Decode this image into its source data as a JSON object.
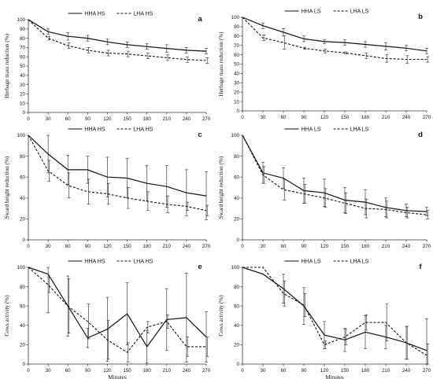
{
  "chart_data": [
    {
      "panel": "a",
      "type": "line",
      "x": [
        0,
        30,
        60,
        90,
        120,
        150,
        180,
        210,
        240,
        270
      ],
      "xticks": [
        "0",
        "30",
        "60",
        "90",
        "120",
        "150",
        "180",
        "210",
        "240",
        "270"
      ],
      "ylim": [
        0,
        100
      ],
      "yticks": [
        "0",
        "10",
        "20",
        "30",
        "40",
        "50",
        "60",
        "70",
        "80",
        "90",
        "100"
      ],
      "ylabel": "Herbage mass reduction (%)",
      "xlabel": "",
      "legend_position": "top-center",
      "series": [
        {
          "name": "HHA HS",
          "style": "solid",
          "values": [
            100,
            87,
            82,
            80,
            76,
            73,
            71,
            69,
            67,
            66
          ],
          "err": [
            0,
            3,
            4,
            3,
            3,
            3,
            3,
            4,
            3,
            3
          ]
        },
        {
          "name": "LHA HS",
          "style": "dashed",
          "values": [
            100,
            80,
            72,
            67,
            64,
            63,
            61,
            59,
            57,
            56
          ],
          "err": [
            0,
            2,
            3,
            3,
            3,
            3,
            3,
            3,
            3,
            3
          ]
        }
      ]
    },
    {
      "panel": "b",
      "type": "line",
      "x": [
        0,
        30,
        60,
        90,
        120,
        150,
        180,
        210,
        240,
        270
      ],
      "xticks": [
        "0",
        "30",
        "60",
        "90",
        "120",
        "150",
        "180",
        "210",
        "240",
        "270"
      ],
      "ylim": [
        0,
        100
      ],
      "yticks": [
        "0",
        "10",
        "20",
        "30",
        "40",
        "50",
        "60",
        "70",
        "80",
        "90",
        "100"
      ],
      "ylabel": "Herbage mass reduction (%)",
      "xlabel": "",
      "legend_position": "top-center",
      "series": [
        {
          "name": "HHA LS",
          "style": "solid",
          "values": [
            100,
            91,
            84,
            77,
            74,
            73,
            71,
            69,
            67,
            64
          ],
          "err": [
            0,
            3,
            4,
            3,
            2,
            3,
            3,
            4,
            3,
            3
          ]
        },
        {
          "name": "LHA LS",
          "style": "dashed",
          "values": [
            100,
            78,
            73,
            67,
            64,
            62,
            59,
            56,
            55,
            55
          ],
          "err": [
            0,
            3,
            7,
            1,
            2,
            1,
            3,
            4,
            4,
            3
          ]
        }
      ]
    },
    {
      "panel": "c",
      "type": "line",
      "x": [
        0,
        30,
        60,
        90,
        120,
        150,
        180,
        210,
        240,
        270
      ],
      "xticks": [
        "0",
        "30",
        "60",
        "90",
        "120",
        "150",
        "180",
        "210",
        "240",
        "270"
      ],
      "ylim": [
        0,
        100
      ],
      "yticks": [
        "0",
        "20",
        "40",
        "60",
        "80",
        "100"
      ],
      "ylabel": "Sward height reduction (%)",
      "xlabel": "",
      "legend_position": "top-center",
      "series": [
        {
          "name": "HHA HS",
          "style": "solid",
          "values": [
            100,
            82,
            67,
            67,
            60,
            59,
            54,
            51,
            45,
            42
          ],
          "err": [
            0,
            18,
            14,
            13,
            19,
            19,
            17,
            20,
            22,
            23
          ]
        },
        {
          "name": "LHA HS",
          "style": "dashed",
          "values": [
            100,
            66,
            52,
            46,
            44,
            40,
            37,
            34,
            32,
            28
          ],
          "err": [
            0,
            10,
            12,
            12,
            10,
            10,
            9,
            8,
            4,
            5
          ]
        }
      ]
    },
    {
      "panel": "d",
      "type": "line",
      "x": [
        0,
        30,
        60,
        90,
        120,
        150,
        180,
        210,
        240,
        270
      ],
      "xticks": [
        "0",
        "30",
        "60",
        "90",
        "120",
        "150",
        "180",
        "210",
        "240",
        "270"
      ],
      "ylim": [
        0,
        100
      ],
      "yticks": [
        "0",
        "20",
        "40",
        "60",
        "80",
        "100"
      ],
      "ylabel": "Sward height reduction (%)",
      "xlabel": "",
      "legend_position": "top-center",
      "series": [
        {
          "name": "HHA LS",
          "style": "solid",
          "values": [
            100,
            64,
            59,
            47,
            45,
            38,
            36,
            31,
            28,
            27
          ],
          "err": [
            0,
            10,
            10,
            12,
            13,
            12,
            12,
            9,
            6,
            4
          ]
        },
        {
          "name": "LHA LS",
          "style": "dashed",
          "values": [
            100,
            62,
            48,
            44,
            40,
            35,
            30,
            29,
            26,
            24
          ],
          "err": [
            0,
            8,
            10,
            9,
            9,
            10,
            9,
            8,
            5,
            4
          ]
        }
      ]
    },
    {
      "panel": "e",
      "type": "line",
      "x": [
        0,
        30,
        60,
        90,
        120,
        150,
        180,
        210,
        240,
        270
      ],
      "xticks": [
        "0",
        "30",
        "60",
        "90",
        "120",
        "150",
        "180",
        "210",
        "240",
        "270"
      ],
      "ylim": [
        0,
        100
      ],
      "yticks": [
        "0",
        "20",
        "40",
        "60",
        "80",
        "100"
      ],
      "ylabel": "Cows activity (%)",
      "xlabel": "Minutes",
      "legend_position": "top-center",
      "series": [
        {
          "name": "HHA HS",
          "style": "solid",
          "values": [
            100,
            93,
            60,
            27,
            36,
            52,
            18,
            46,
            48,
            28
          ],
          "err": [
            0,
            40,
            31,
            10,
            33,
            32,
            17,
            32,
            46,
            26
          ]
        },
        {
          "name": "LHA HS",
          "style": "dashed",
          "values": [
            100,
            82,
            60,
            44,
            25,
            12,
            38,
            44,
            18,
            18
          ],
          "err": [
            0,
            8,
            28,
            18,
            20,
            10,
            6,
            7,
            10,
            10
          ]
        }
      ]
    },
    {
      "panel": "f",
      "type": "line",
      "x": [
        0,
        30,
        60,
        90,
        120,
        150,
        180,
        210,
        240,
        270
      ],
      "xticks": [
        "0",
        "30",
        "60",
        "90",
        "120",
        "150",
        "180",
        "210",
        "240",
        "270"
      ],
      "ylim": [
        0,
        100
      ],
      "yticks": [
        "0",
        "20",
        "40",
        "60",
        "80",
        "100"
      ],
      "ylabel": "Cows activity (%)",
      "xlabel": "Minutes",
      "legend_position": "top-center",
      "series": [
        {
          "name": "HHA LS",
          "style": "solid",
          "values": [
            100,
            93,
            78,
            60,
            30,
            25,
            33,
            28,
            22,
            14
          ],
          "err": [
            0,
            0,
            15,
            19,
            14,
            12,
            17,
            12,
            17,
            33
          ]
        },
        {
          "name": "LHA LS",
          "style": "dashed",
          "values": [
            100,
            100,
            73,
            61,
            20,
            28,
            43,
            43,
            22,
            9
          ],
          "err": [
            0,
            0,
            13,
            12,
            4,
            8,
            8,
            19,
            17,
            12
          ]
        }
      ]
    }
  ]
}
